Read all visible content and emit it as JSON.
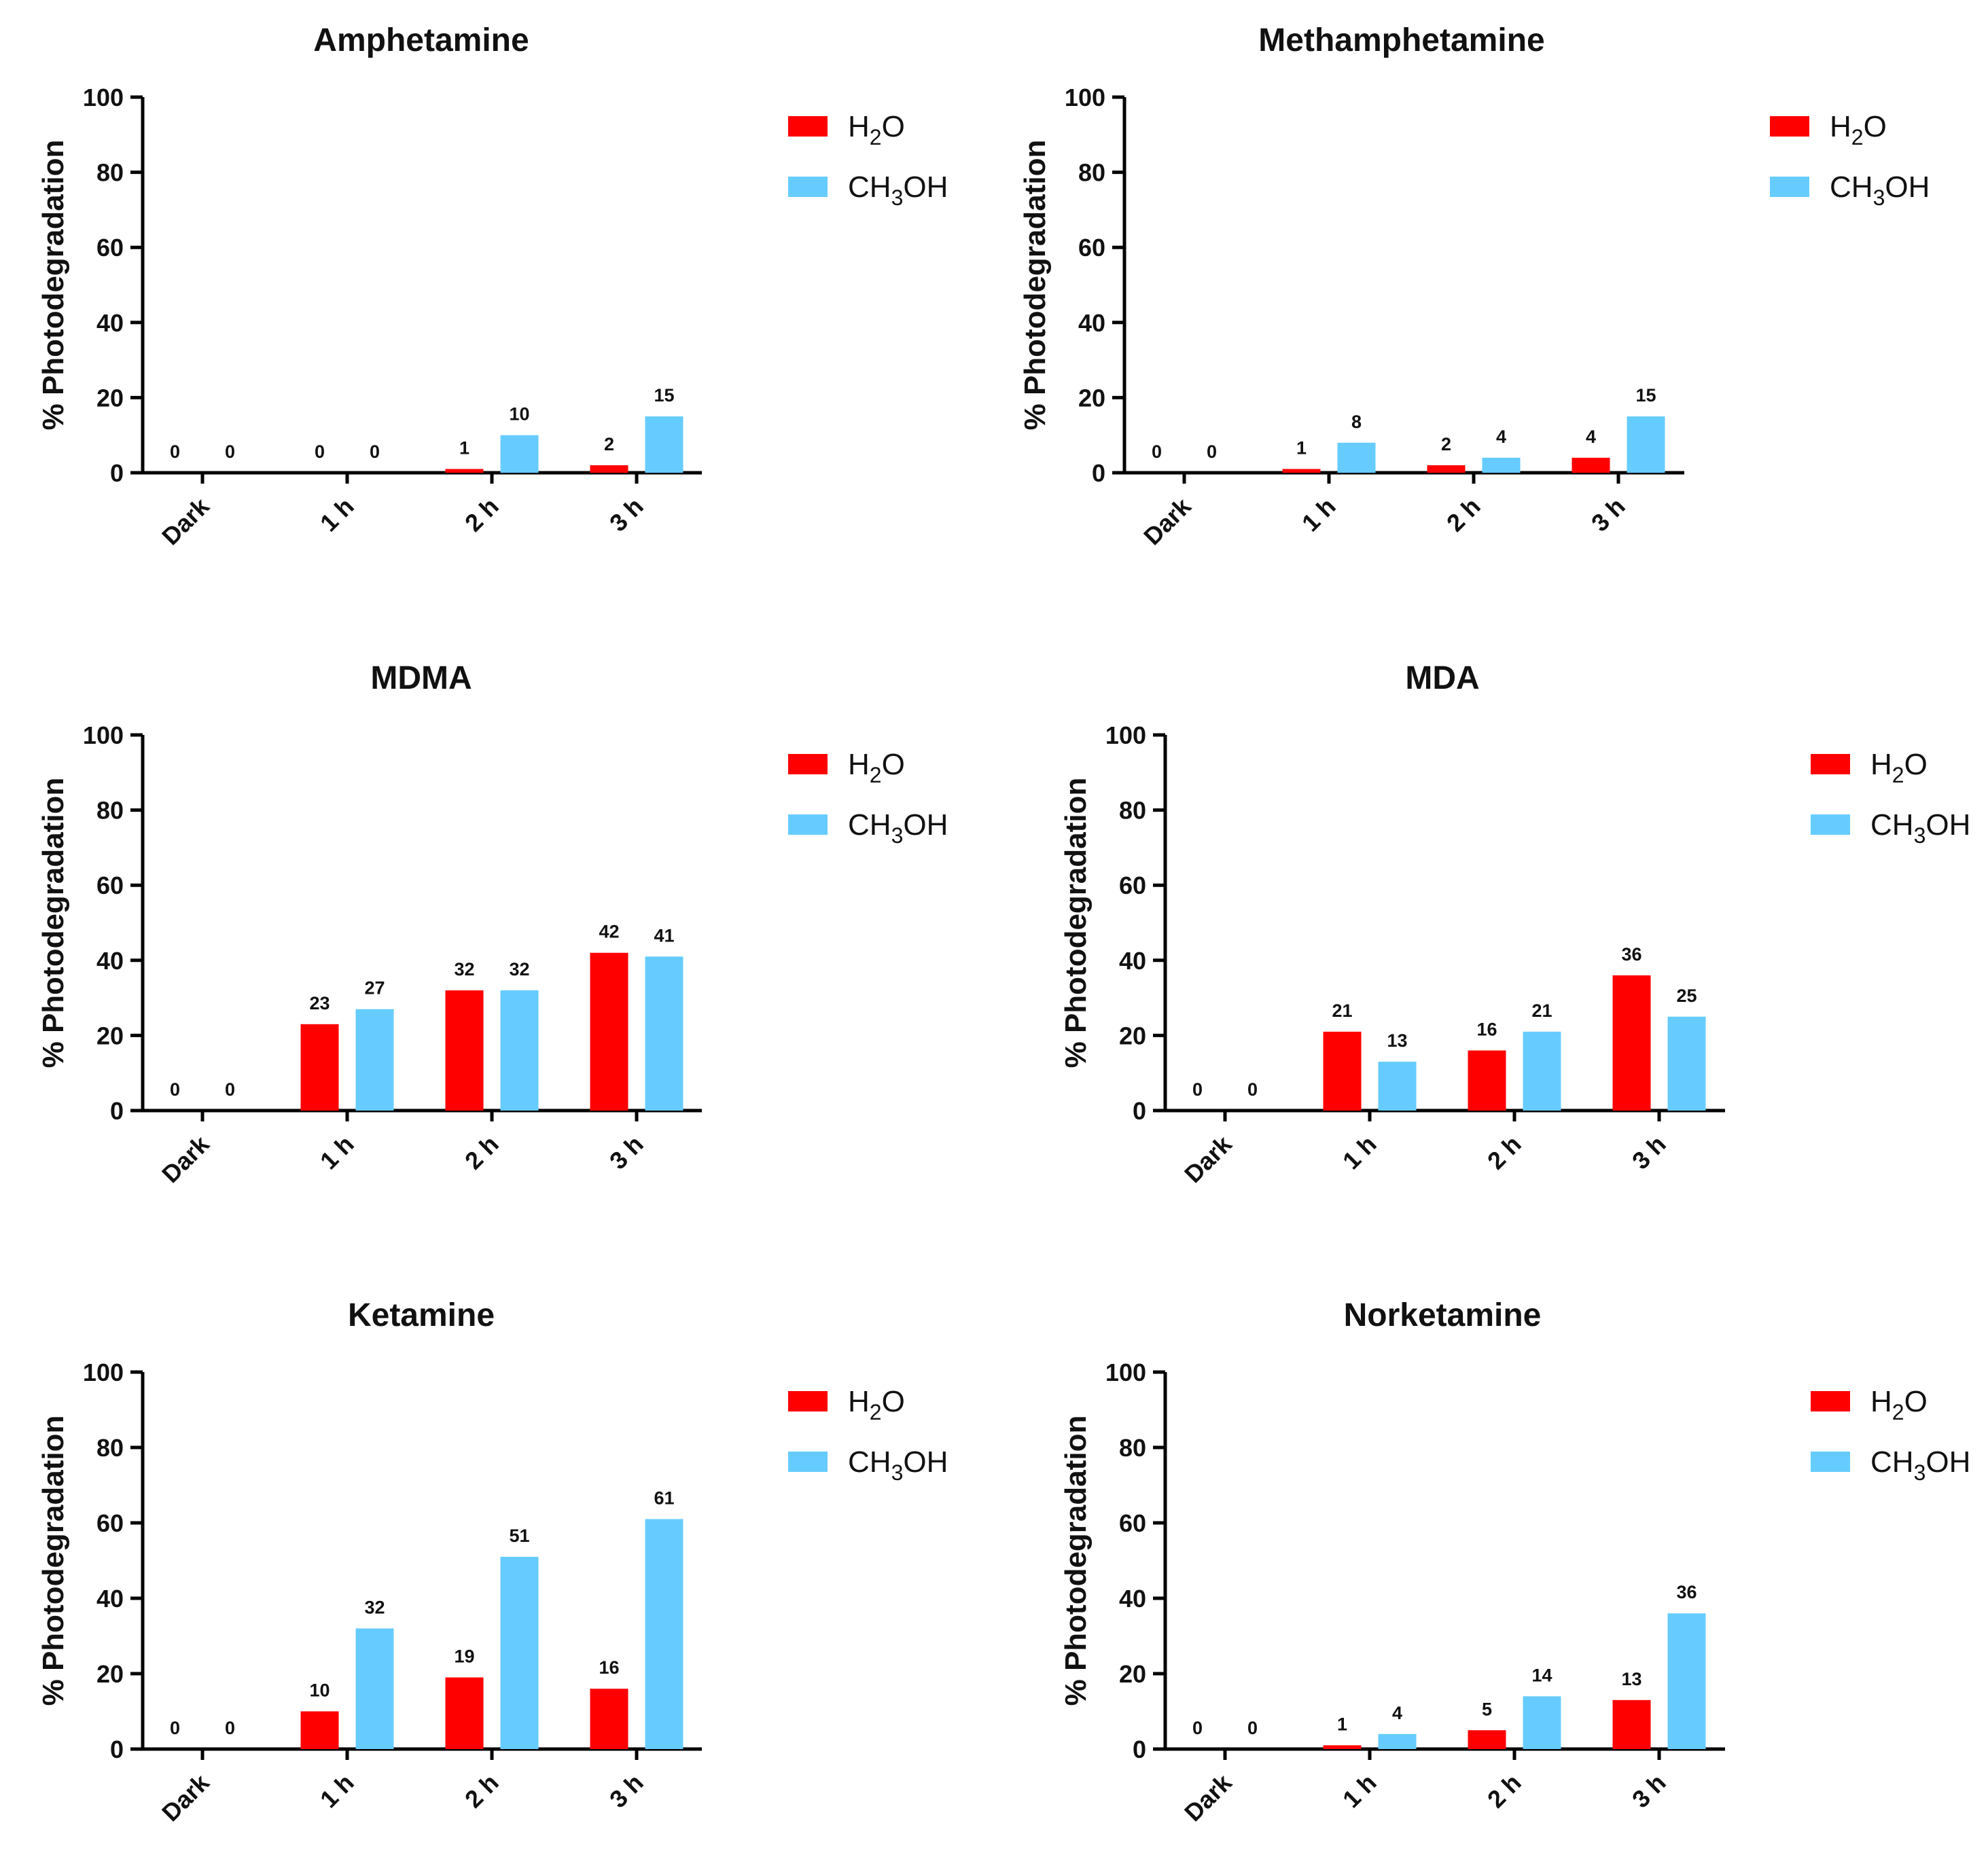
{
  "colors": {
    "H2O": "#ff0000",
    "CH3OH": "#66ccff"
  },
  "legend": [
    {
      "key": "H2O",
      "base": "H",
      "sub": "2",
      "tail": "O"
    },
    {
      "key": "CH3OH",
      "base": "CH",
      "sub": "3",
      "tail": "OH"
    }
  ],
  "chart_data": [
    {
      "type": "bar",
      "title": "Amphetamine",
      "ylabel": "% Photodegradation",
      "ylim": [
        0,
        100
      ],
      "yticks": [
        "0",
        "20",
        "40",
        "60",
        "80",
        "100"
      ],
      "categories": [
        "Dark",
        "1 h",
        "2 h",
        "3 h"
      ],
      "series": [
        {
          "name": "H2O",
          "values": [
            0,
            0,
            1,
            2
          ]
        },
        {
          "name": "CH3OH",
          "values": [
            0,
            0,
            10,
            15
          ]
        }
      ],
      "legend_position": "top-right"
    },
    {
      "type": "bar",
      "title": "Methamphetamine",
      "ylabel": "% Photodegradation",
      "ylim": [
        0,
        100
      ],
      "yticks": [
        "0",
        "20",
        "40",
        "60",
        "80",
        "100"
      ],
      "categories": [
        "Dark",
        "1 h",
        "2 h",
        "3 h"
      ],
      "series": [
        {
          "name": "H2O",
          "values": [
            0,
            1,
            2,
            4
          ]
        },
        {
          "name": "CH3OH",
          "values": [
            0,
            8,
            4,
            15
          ]
        }
      ],
      "legend_position": "top-right"
    },
    {
      "type": "bar",
      "title": "MDMA",
      "ylabel": "% Photodegradation",
      "ylim": [
        0,
        100
      ],
      "yticks": [
        "0",
        "20",
        "40",
        "60",
        "80",
        "100"
      ],
      "categories": [
        "Dark",
        "1 h",
        "2 h",
        "3 h"
      ],
      "series": [
        {
          "name": "H2O",
          "values": [
            0,
            23,
            32,
            42
          ]
        },
        {
          "name": "CH3OH",
          "values": [
            0,
            27,
            32,
            41
          ]
        }
      ],
      "legend_position": "top-right"
    },
    {
      "type": "bar",
      "title": "MDA",
      "ylabel": "% Photodegradation",
      "ylim": [
        0,
        100
      ],
      "yticks": [
        "0",
        "20",
        "40",
        "60",
        "80",
        "100"
      ],
      "categories": [
        "Dark",
        "1 h",
        "2 h",
        "3 h"
      ],
      "series": [
        {
          "name": "H2O",
          "values": [
            0,
            21,
            16,
            36
          ]
        },
        {
          "name": "CH3OH",
          "values": [
            0,
            13,
            21,
            25
          ]
        }
      ],
      "legend_position": "top-right"
    },
    {
      "type": "bar",
      "title": "Ketamine",
      "ylabel": "% Photodegradation",
      "ylim": [
        0,
        100
      ],
      "yticks": [
        "0",
        "20",
        "40",
        "60",
        "80",
        "100"
      ],
      "categories": [
        "Dark",
        "1 h",
        "2 h",
        "3 h"
      ],
      "series": [
        {
          "name": "H2O",
          "values": [
            0,
            10,
            19,
            16
          ]
        },
        {
          "name": "CH3OH",
          "values": [
            0,
            32,
            51,
            61
          ]
        }
      ],
      "legend_position": "top-right"
    },
    {
      "type": "bar",
      "title": "Norketamine",
      "ylabel": "% Photodegradation",
      "ylim": [
        0,
        100
      ],
      "yticks": [
        "0",
        "20",
        "40",
        "60",
        "80",
        "100"
      ],
      "categories": [
        "Dark",
        "1 h",
        "2 h",
        "3 h"
      ],
      "series": [
        {
          "name": "H2O",
          "values": [
            0,
            1,
            5,
            13
          ]
        },
        {
          "name": "CH3OH",
          "values": [
            0,
            4,
            14,
            36
          ]
        }
      ],
      "legend_position": "top-right"
    }
  ]
}
